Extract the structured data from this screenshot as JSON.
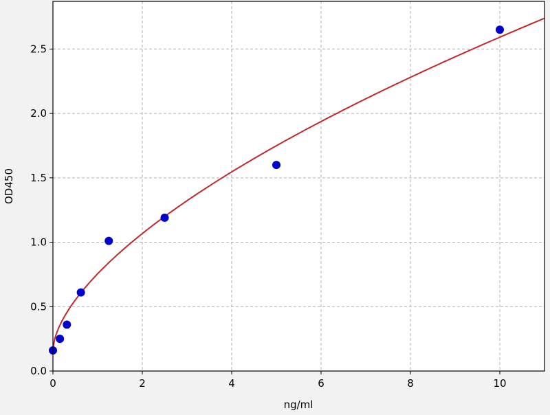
{
  "chart_data": {
    "type": "scatter",
    "title": "",
    "xlabel": "ng/ml",
    "ylabel": "OD450",
    "xlim": [
      0,
      11
    ],
    "ylim": [
      0,
      2.87
    ],
    "xticks": [
      0,
      2,
      4,
      6,
      8,
      10
    ],
    "xtick_labels": [
      "0",
      "2",
      "4",
      "6",
      "8",
      "10"
    ],
    "yticks": [
      0,
      0.5,
      1.0,
      1.5,
      2.0,
      2.5
    ],
    "ytick_labels": [
      "0.0",
      "0.5",
      "1.0",
      "1.5",
      "2.0",
      "2.5"
    ],
    "grid": true,
    "points": {
      "x": [
        0,
        0.156,
        0.312,
        0.625,
        1.25,
        2.5,
        5,
        10
      ],
      "y": [
        0.16,
        0.25,
        0.36,
        0.61,
        1.01,
        1.19,
        1.6,
        2.65
      ],
      "color": "#0000cc"
    },
    "fit_curve": {
      "type": "power",
      "a": 0.17,
      "b": 0.585,
      "c": 0.617,
      "color": "#c0282a"
    }
  }
}
